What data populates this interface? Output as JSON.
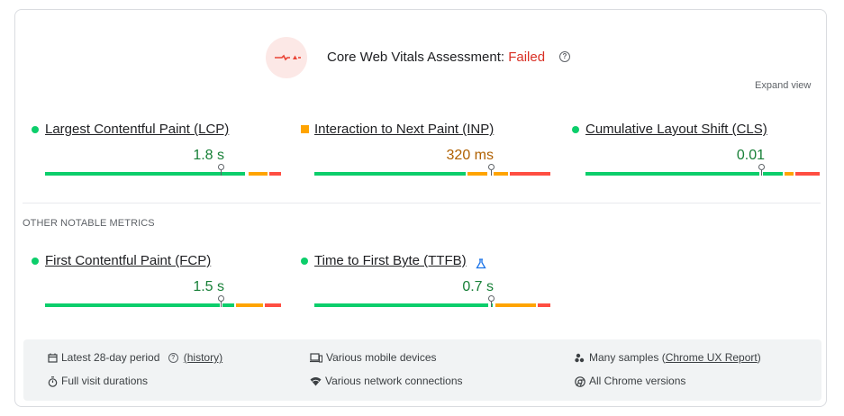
{
  "header": {
    "title_prefix": "Core Web Vitals Assessment: ",
    "status": "Failed",
    "help_glyph": "?",
    "expand_label": "Expand view",
    "colors": {
      "failed": "#d93025",
      "badge_bg": "#fce8e6"
    }
  },
  "core_metrics": [
    {
      "name": "Largest Contentful Paint (LCP)",
      "value": "1.8 s",
      "rating": "good",
      "indicator": "circle"
    },
    {
      "name": "Interaction to Next Paint (INP)",
      "value": "320 ms",
      "rating": "needs-improvement",
      "indicator": "square"
    },
    {
      "name": "Cumulative Layout Shift (CLS)",
      "value": "0.01",
      "rating": "good",
      "indicator": "circle"
    }
  ],
  "other_section": {
    "label": "OTHER NOTABLE METRICS",
    "metrics": [
      {
        "name": "First Contentful Paint (FCP)",
        "value": "1.5 s",
        "rating": "good",
        "indicator": "circle"
      },
      {
        "name": "Time to First Byte (TTFB)",
        "value": "0.7 s",
        "rating": "good",
        "indicator": "circle",
        "icon": "lab-flask-icon"
      }
    ]
  },
  "footer": {
    "period_label": "Latest 28-day period",
    "history_link": "(history)",
    "visit_label": "Full visit durations",
    "devices_label": "Various mobile devices",
    "network_label": "Various network connections",
    "samples_prefix": "Many samples (",
    "samples_link": "Chrome UX Report",
    "samples_suffix": ")",
    "versions_label": "All Chrome versions"
  },
  "rating_colors": {
    "good": "#0cce6b",
    "needs_improvement": "#ffa400",
    "poor": "#ff4e42"
  }
}
